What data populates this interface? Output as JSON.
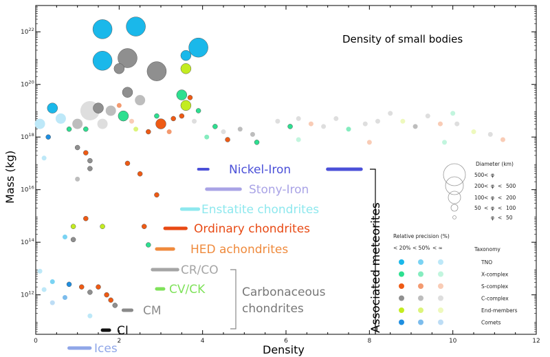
{
  "chart_data": {
    "type": "scatter",
    "title": "Density of small bodies",
    "xlabel": "Density",
    "ylabel": "Mass (kg)",
    "xlim": [
      0,
      12
    ],
    "ylim_log10": [
      10.5,
      23
    ],
    "yscale": "log",
    "x_ticks": [
      "0",
      "2",
      "4",
      "6",
      "8",
      "10",
      "12"
    ],
    "y_ticks": [
      {
        "base": "10",
        "exp": "12",
        "log": 12
      },
      {
        "base": "10",
        "exp": "14",
        "log": 14
      },
      {
        "base": "10",
        "exp": "16",
        "log": 16
      },
      {
        "base": "10",
        "exp": "18",
        "log": 18
      },
      {
        "base": "10",
        "exp": "20",
        "log": 20
      },
      {
        "base": "10",
        "exp": "22",
        "log": 22
      }
    ],
    "taxonomy_colors": {
      "TNO": [
        "#1ab8ea",
        "#7ad3f3",
        "#bde8f8"
      ],
      "X-complex": [
        "#2ddf90",
        "#85ecbf",
        "#c2f5de"
      ],
      "S-complex": [
        "#ee5a14",
        "#f39a70",
        "#f9ccb6"
      ],
      "C-complex": [
        "#8f8f8f",
        "#bdbdbd",
        "#dedede"
      ],
      "End-members": [
        "#c3ec20",
        "#dcf47b",
        "#eef9bd"
      ],
      "Comets": [
        "#1e8ee0",
        "#7cbcec",
        "#bdddf5"
      ]
    },
    "points": [
      {
        "x": 1.6,
        "y": 22.1,
        "s": 2,
        "t": "TNO",
        "p": 0
      },
      {
        "x": 2.4,
        "y": 22.2,
        "s": 2,
        "t": "TNO",
        "p": 0
      },
      {
        "x": 1.6,
        "y": 20.9,
        "s": 2,
        "t": "TNO",
        "p": 0
      },
      {
        "x": 2.2,
        "y": 21.0,
        "s": 2,
        "t": "C-complex",
        "p": 0
      },
      {
        "x": 2.0,
        "y": 20.6,
        "s": 1,
        "t": "C-complex",
        "p": 0
      },
      {
        "x": 2.9,
        "y": 20.5,
        "s": 2,
        "t": "C-complex",
        "p": 0
      },
      {
        "x": 3.6,
        "y": 21.1,
        "s": 1,
        "t": "TNO",
        "p": 0
      },
      {
        "x": 3.9,
        "y": 21.4,
        "s": 2,
        "t": "TNO",
        "p": 0
      },
      {
        "x": 3.6,
        "y": 20.6,
        "s": 1,
        "t": "End-members",
        "p": 0
      },
      {
        "x": 2.2,
        "y": 19.7,
        "s": 1,
        "t": "C-complex",
        "p": 0
      },
      {
        "x": 2.5,
        "y": 19.4,
        "s": 1,
        "t": "C-complex",
        "p": 1
      },
      {
        "x": 3.5,
        "y": 19.6,
        "s": 1,
        "t": "X-complex",
        "p": 0
      },
      {
        "x": 3.6,
        "y": 19.2,
        "s": 1,
        "t": "End-members",
        "p": 0
      },
      {
        "x": 3.7,
        "y": 19.5,
        "s": 0,
        "t": "S-complex",
        "p": 0
      },
      {
        "x": 3.5,
        "y": 18.8,
        "s": 0,
        "t": "S-complex",
        "p": 0
      },
      {
        "x": 0.4,
        "y": 19.1,
        "s": 1,
        "t": "TNO",
        "p": 0
      },
      {
        "x": 0.6,
        "y": 18.7,
        "s": 1,
        "t": "TNO",
        "p": 2
      },
      {
        "x": 0.1,
        "y": 18.5,
        "s": 1,
        "t": "TNO",
        "p": 2
      },
      {
        "x": 0.3,
        "y": 18.0,
        "s": 0,
        "t": "Comets",
        "p": 0
      },
      {
        "x": 0.8,
        "y": 18.3,
        "s": 0,
        "t": "X-complex",
        "p": 0
      },
      {
        "x": 1.0,
        "y": 18.5,
        "s": 1,
        "t": "C-complex",
        "p": 1
      },
      {
        "x": 1.2,
        "y": 18.3,
        "s": 0,
        "t": "X-complex",
        "p": 0
      },
      {
        "x": 1.3,
        "y": 18.8,
        "s": 0,
        "t": "C-complex",
        "p": 0
      },
      {
        "x": 1.3,
        "y": 19.0,
        "s": 2,
        "t": "C-complex",
        "p": 2
      },
      {
        "x": 1.5,
        "y": 19.1,
        "s": 1,
        "t": "C-complex",
        "p": 0
      },
      {
        "x": 1.6,
        "y": 18.5,
        "s": 1,
        "t": "C-complex",
        "p": 2
      },
      {
        "x": 1.8,
        "y": 19.0,
        "s": 1,
        "t": "C-complex",
        "p": 1
      },
      {
        "x": 2.0,
        "y": 19.2,
        "s": 0,
        "t": "S-complex",
        "p": 1
      },
      {
        "x": 2.1,
        "y": 18.8,
        "s": 1,
        "t": "X-complex",
        "p": 0
      },
      {
        "x": 2.3,
        "y": 18.6,
        "s": 0,
        "t": "S-complex",
        "p": 2
      },
      {
        "x": 2.4,
        "y": 18.3,
        "s": 0,
        "t": "End-members",
        "p": 1
      },
      {
        "x": 2.7,
        "y": 18.2,
        "s": 0,
        "t": "S-complex",
        "p": 0
      },
      {
        "x": 2.9,
        "y": 18.8,
        "s": 0,
        "t": "X-complex",
        "p": 0
      },
      {
        "x": 3.0,
        "y": 18.5,
        "s": 1,
        "t": "S-complex",
        "p": 0
      },
      {
        "x": 3.3,
        "y": 18.7,
        "s": 0,
        "t": "S-complex",
        "p": 0
      },
      {
        "x": 3.2,
        "y": 18.2,
        "s": 0,
        "t": "S-complex",
        "p": 1
      },
      {
        "x": 3.8,
        "y": 18.6,
        "s": 0,
        "t": "C-complex",
        "p": 2
      },
      {
        "x": 3.9,
        "y": 19.0,
        "s": 0,
        "t": "X-complex",
        "p": 0
      },
      {
        "x": 4.3,
        "y": 18.4,
        "s": 0,
        "t": "X-complex",
        "p": 0
      },
      {
        "x": 4.5,
        "y": 18.2,
        "s": 0,
        "t": "C-complex",
        "p": 2
      },
      {
        "x": 4.1,
        "y": 18.0,
        "s": 0,
        "t": "X-complex",
        "p": 1
      },
      {
        "x": 4.6,
        "y": 17.9,
        "s": 0,
        "t": "S-complex",
        "p": 0
      },
      {
        "x": 4.9,
        "y": 18.3,
        "s": 0,
        "t": "C-complex",
        "p": 1
      },
      {
        "x": 5.2,
        "y": 18.1,
        "s": 0,
        "t": "C-complex",
        "p": 1
      },
      {
        "x": 5.3,
        "y": 17.8,
        "s": 0,
        "t": "X-complex",
        "p": 0
      },
      {
        "x": 5.8,
        "y": 18.6,
        "s": 0,
        "t": "C-complex",
        "p": 2
      },
      {
        "x": 6.1,
        "y": 18.4,
        "s": 0,
        "t": "X-complex",
        "p": 0
      },
      {
        "x": 6.3,
        "y": 18.7,
        "s": 0,
        "t": "C-complex",
        "p": 2
      },
      {
        "x": 6.6,
        "y": 18.5,
        "s": 0,
        "t": "S-complex",
        "p": 2
      },
      {
        "x": 6.9,
        "y": 18.4,
        "s": 0,
        "t": "C-complex",
        "p": 2
      },
      {
        "x": 7.2,
        "y": 18.7,
        "s": 0,
        "t": "C-complex",
        "p": 2
      },
      {
        "x": 7.5,
        "y": 18.3,
        "s": 0,
        "t": "X-complex",
        "p": 1
      },
      {
        "x": 7.9,
        "y": 18.5,
        "s": 0,
        "t": "C-complex",
        "p": 2
      },
      {
        "x": 8.2,
        "y": 18.6,
        "s": 0,
        "t": "C-complex",
        "p": 2
      },
      {
        "x": 8.5,
        "y": 18.9,
        "s": 0,
        "t": "C-complex",
        "p": 2
      },
      {
        "x": 8.8,
        "y": 18.6,
        "s": 0,
        "t": "End-members",
        "p": 2
      },
      {
        "x": 9.1,
        "y": 18.4,
        "s": 0,
        "t": "C-complex",
        "p": 1
      },
      {
        "x": 9.4,
        "y": 18.8,
        "s": 0,
        "t": "C-complex",
        "p": 2
      },
      {
        "x": 9.7,
        "y": 18.5,
        "s": 0,
        "t": "S-complex",
        "p": 2
      },
      {
        "x": 10.0,
        "y": 18.9,
        "s": 0,
        "t": "X-complex",
        "p": 2
      },
      {
        "x": 10.1,
        "y": 18.5,
        "s": 0,
        "t": "C-complex",
        "p": 2
      },
      {
        "x": 10.5,
        "y": 18.2,
        "s": 0,
        "t": "End-members",
        "p": 2
      },
      {
        "x": 10.9,
        "y": 18.1,
        "s": 0,
        "t": "C-complex",
        "p": 2
      },
      {
        "x": 11.2,
        "y": 17.9,
        "s": 0,
        "t": "S-complex",
        "p": 2
      },
      {
        "x": 6.3,
        "y": 17.9,
        "s": 0,
        "t": "X-complex",
        "p": 2
      },
      {
        "x": 8.0,
        "y": 17.8,
        "s": 0,
        "t": "S-complex",
        "p": 2
      },
      {
        "x": 9.8,
        "y": 17.8,
        "s": 0,
        "t": "X-complex",
        "p": 2
      },
      {
        "x": 1.0,
        "y": 17.6,
        "s": 0,
        "t": "C-complex",
        "p": 0
      },
      {
        "x": 1.3,
        "y": 17.1,
        "s": 0,
        "t": "C-complex",
        "p": 0
      },
      {
        "x": 1.3,
        "y": 16.8,
        "s": 0,
        "t": "C-complex",
        "p": 0
      },
      {
        "x": 1.2,
        "y": 17.4,
        "s": 0,
        "t": "S-complex",
        "p": 0
      },
      {
        "x": 2.2,
        "y": 17.0,
        "s": 0,
        "t": "S-complex",
        "p": 0
      },
      {
        "x": 2.5,
        "y": 16.6,
        "s": 0,
        "t": "S-complex",
        "p": 0
      },
      {
        "x": 0.2,
        "y": 17.2,
        "s": 0,
        "t": "TNO",
        "p": 2
      },
      {
        "x": 1.0,
        "y": 16.4,
        "s": 0,
        "t": "C-complex",
        "p": 1
      },
      {
        "x": 2.9,
        "y": 15.8,
        "s": 0,
        "t": "S-complex",
        "p": 0
      },
      {
        "x": 1.2,
        "y": 14.9,
        "s": 0,
        "t": "S-complex",
        "p": 0
      },
      {
        "x": 0.9,
        "y": 14.6,
        "s": 0,
        "t": "End-members",
        "p": 0
      },
      {
        "x": 1.6,
        "y": 14.6,
        "s": 0,
        "t": "End-members",
        "p": 0
      },
      {
        "x": 2.6,
        "y": 14.6,
        "s": 0,
        "t": "S-complex",
        "p": 0
      },
      {
        "x": 0.9,
        "y": 14.1,
        "s": 0,
        "t": "C-complex",
        "p": 0
      },
      {
        "x": 0.7,
        "y": 14.2,
        "s": 0,
        "t": "TNO",
        "p": 1
      },
      {
        "x": 2.7,
        "y": 13.9,
        "s": 0,
        "t": "X-complex",
        "p": 0
      },
      {
        "x": 0.1,
        "y": 12.9,
        "s": 0,
        "t": "TNO",
        "p": 2
      },
      {
        "x": 0.4,
        "y": 12.5,
        "s": 0,
        "t": "TNO",
        "p": 1
      },
      {
        "x": 0.8,
        "y": 12.4,
        "s": 0,
        "t": "Comets",
        "p": 0
      },
      {
        "x": 0.2,
        "y": 12.2,
        "s": 0,
        "t": "TNO",
        "p": 2
      },
      {
        "x": 0.7,
        "y": 11.9,
        "s": 0,
        "t": "Comets",
        "p": 1
      },
      {
        "x": 1.1,
        "y": 12.3,
        "s": 0,
        "t": "S-complex",
        "p": 0
      },
      {
        "x": 1.3,
        "y": 12.1,
        "s": 0,
        "t": "C-complex",
        "p": 0
      },
      {
        "x": 1.5,
        "y": 12.3,
        "s": 0,
        "t": "S-complex",
        "p": 0
      },
      {
        "x": 1.7,
        "y": 12.0,
        "s": 0,
        "t": "S-complex",
        "p": 0
      },
      {
        "x": 1.8,
        "y": 11.8,
        "s": 0,
        "t": "S-complex",
        "p": 0
      },
      {
        "x": 1.9,
        "y": 11.6,
        "s": 0,
        "t": "C-complex",
        "p": 0
      },
      {
        "x": 0.4,
        "y": 11.7,
        "s": 0,
        "t": "Comets",
        "p": 2
      },
      {
        "x": 1.3,
        "y": 11.2,
        "s": 0,
        "t": "TNO",
        "p": 2
      }
    ],
    "meteorite_groups": [
      {
        "name": "Nickel-Iron",
        "x0": 7.0,
        "x1": 7.8,
        "color": "#4b50d8"
      },
      {
        "name": "Stony-Iron",
        "x0": 4.1,
        "x1": 4.9,
        "color": "#a9a3e6"
      },
      {
        "name": "Enstatite chondrites",
        "x0": 3.5,
        "x1": 3.9,
        "color": "#8ee8ee"
      },
      {
        "name": "Ordinary chondrites",
        "x0": 3.1,
        "x1": 3.6,
        "color": "#e84a14"
      },
      {
        "name": "HED achondrites",
        "x0": 2.9,
        "x1": 3.3,
        "color": "#ef8a3c"
      },
      {
        "name": "CR/CO",
        "x0": 2.8,
        "x1": 3.4,
        "color": "#a5a5a5"
      },
      {
        "name": "CV/CK",
        "x0": 2.9,
        "x1": 3.0,
        "color": "#7fe25a"
      },
      {
        "name": "CM",
        "x0": 2.1,
        "x1": 2.3,
        "color": "#8a8a8a"
      },
      {
        "name": "CI",
        "x0": 1.6,
        "x1": 1.7,
        "color": "#111111"
      },
      {
        "name": "Ices",
        "x0": 0.8,
        "x1": 1.3,
        "color": "#8fa6e8"
      }
    ],
    "meteorite_mark": {
      "name": "Nickel-Iron",
      "x0": 4.0,
      "x1": 4.1,
      "color": "#4b50d8"
    },
    "bracket_labels": {
      "associated": "Associated meteorites",
      "carbonaceous_1": "Carbonaceous",
      "carbonaceous_2": "chondrites"
    },
    "legend_diameter": {
      "title": "Diameter (km)",
      "rows": [
        [
          "500",
          "<",
          "φ",
          "",
          ""
        ],
        [
          "200",
          "<",
          "φ",
          "<",
          "500"
        ],
        [
          "100",
          "<",
          "φ",
          "<",
          "200"
        ],
        [
          "50",
          "<",
          "φ",
          "<",
          "100"
        ],
        [
          "",
          "",
          "φ",
          "<",
          "50"
        ]
      ]
    },
    "legend_precision": {
      "title": "Relative precision (%)",
      "columns": [
        "< 20%",
        "< 50%",
        "< ∞"
      ],
      "taxonomy_title": "Taxonomy",
      "taxonomies": [
        "TNO",
        "X-complex",
        "S-complex",
        "C-complex",
        "End-members",
        "Comets"
      ]
    }
  }
}
